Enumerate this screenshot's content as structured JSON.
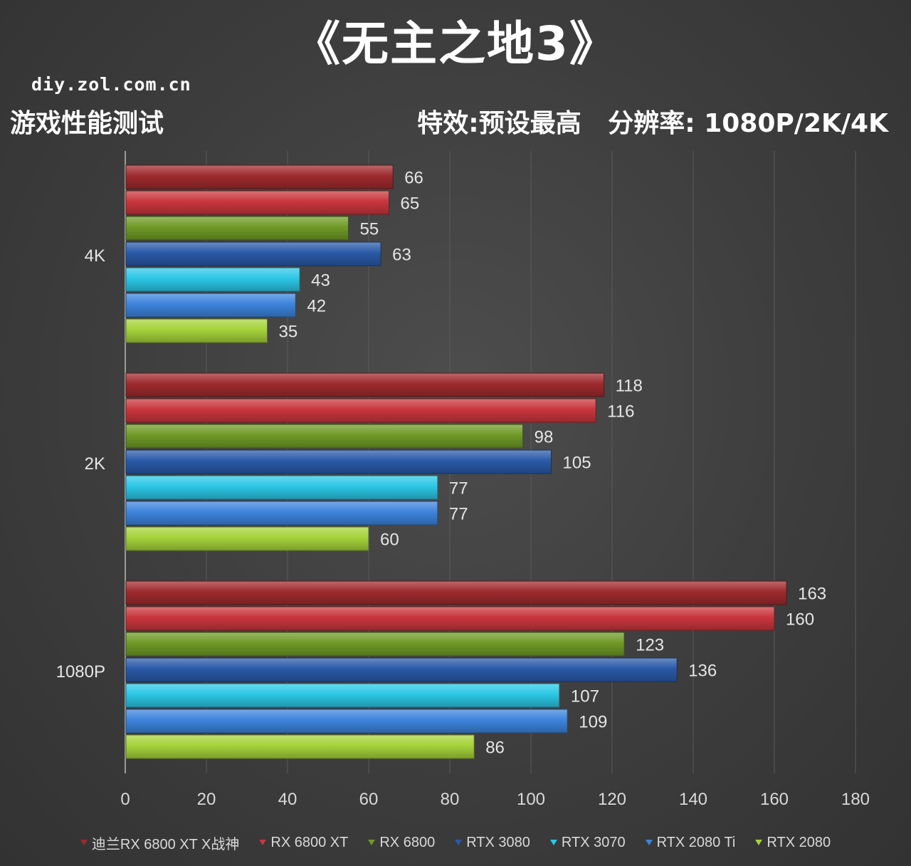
{
  "header": {
    "title": "《无主之地3》",
    "site": "diy.zol.com.cn",
    "subtitle": "游戏性能测试",
    "settings": "特效:预设最高   分辨率: 1080P/2K/4K"
  },
  "chart_data": {
    "type": "bar",
    "orientation": "horizontal",
    "categories": [
      "4K",
      "2K",
      "1080P"
    ],
    "series": [
      {
        "name": "迪兰RX 6800 XT X战神",
        "color": "#9e2a2e",
        "values": [
          66,
          118,
          163
        ]
      },
      {
        "name": "RX 6800 XT",
        "color": "#c9363d",
        "values": [
          65,
          116,
          160
        ]
      },
      {
        "name": "RX 6800",
        "color": "#6f9a26",
        "values": [
          55,
          98,
          123
        ]
      },
      {
        "name": "RTX 3080",
        "color": "#2a5aa8",
        "values": [
          63,
          105,
          136
        ]
      },
      {
        "name": "RTX 3070",
        "color": "#2cc7e6",
        "values": [
          43,
          77,
          107
        ]
      },
      {
        "name": "RTX 2080 Ti",
        "color": "#3d84dc",
        "values": [
          42,
          77,
          109
        ]
      },
      {
        "name": "RTX 2080",
        "color": "#a5d33a",
        "values": [
          35,
          60,
          86
        ]
      }
    ],
    "xlim": [
      0,
      180
    ],
    "xticks": [
      0,
      20,
      40,
      60,
      80,
      100,
      120,
      140,
      160,
      180
    ],
    "grid": true,
    "legend_position": "bottom"
  }
}
